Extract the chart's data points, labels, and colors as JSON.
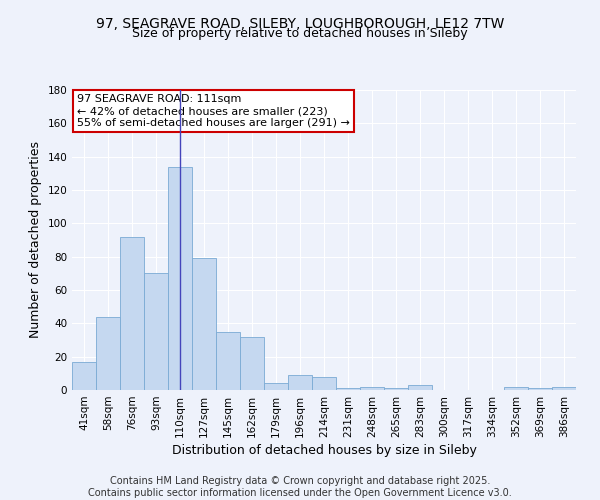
{
  "title_line1": "97, SEAGRAVE ROAD, SILEBY, LOUGHBOROUGH, LE12 7TW",
  "title_line2": "Size of property relative to detached houses in Sileby",
  "xlabel": "Distribution of detached houses by size in Sileby",
  "ylabel": "Number of detached properties",
  "categories": [
    "41sqm",
    "58sqm",
    "76sqm",
    "93sqm",
    "110sqm",
    "127sqm",
    "145sqm",
    "162sqm",
    "179sqm",
    "196sqm",
    "214sqm",
    "231sqm",
    "248sqm",
    "265sqm",
    "283sqm",
    "300sqm",
    "317sqm",
    "334sqm",
    "352sqm",
    "369sqm",
    "386sqm"
  ],
  "values": [
    17,
    44,
    92,
    70,
    134,
    79,
    35,
    32,
    4,
    9,
    8,
    1,
    2,
    1,
    3,
    0,
    0,
    0,
    2,
    1,
    2
  ],
  "bar_color": "#c5d8f0",
  "bar_edge_color": "#7aaad4",
  "subject_bar_index": 4,
  "subject_line_color": "#4444bb",
  "annotation_line1": "97 SEAGRAVE ROAD: 111sqm",
  "annotation_line2": "← 42% of detached houses are smaller (223)",
  "annotation_line3": "55% of semi-detached houses are larger (291) →",
  "annotation_box_color": "#ffffff",
  "annotation_box_edge_color": "#cc0000",
  "ylim": [
    0,
    180
  ],
  "yticks": [
    0,
    20,
    40,
    60,
    80,
    100,
    120,
    140,
    160,
    180
  ],
  "footer_text": "Contains HM Land Registry data © Crown copyright and database right 2025.\nContains public sector information licensed under the Open Government Licence v3.0.",
  "background_color": "#eef2fb",
  "grid_color": "#ffffff",
  "title_fontsize": 10,
  "subtitle_fontsize": 9,
  "axis_label_fontsize": 9,
  "tick_fontsize": 7.5,
  "annotation_fontsize": 8,
  "footer_fontsize": 7
}
